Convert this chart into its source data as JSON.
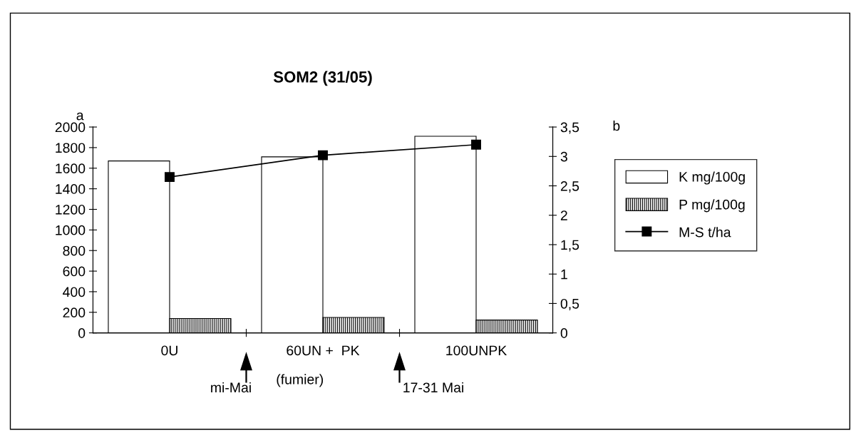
{
  "chart_data": {
    "type": "bar",
    "title": "SOM2 (31/05)",
    "categories": [
      "0U",
      "60UN +  PK",
      "100UNPK"
    ],
    "series": [
      {
        "name": "K mg/100g",
        "color": "#ffffff",
        "values": [
          1670,
          1710,
          1910
        ]
      },
      {
        "name": "P mg/100g",
        "color": "#000000",
        "values": [
          140,
          150,
          125
        ]
      },
      {
        "name": "M-S t/ha",
        "type": "line",
        "axis": "y2",
        "color": "#000000",
        "values": [
          2.65,
          3.02,
          3.2
        ]
      }
    ],
    "ylim": [
      0,
      2000
    ],
    "yticks": [
      0,
      200,
      400,
      600,
      800,
      1000,
      1200,
      1400,
      1600,
      1800,
      2000
    ],
    "y2lim": [
      0,
      3.5
    ],
    "y2ticks": [
      0,
      {
        "value": 0.5,
        "label": "0,5"
      },
      1,
      {
        "value": 1.5,
        "label": "1,5"
      },
      2,
      {
        "value": 2.5,
        "label": "2,5"
      },
      3,
      {
        "value": 3.5,
        "label": "3,5"
      }
    ],
    "annotations": [
      "a",
      "b",
      "mi-Mai",
      "(fumier)",
      "17-31 Mai"
    ],
    "grid": false,
    "legend": "right",
    "marker": "square",
    "line_style": "solid"
  }
}
